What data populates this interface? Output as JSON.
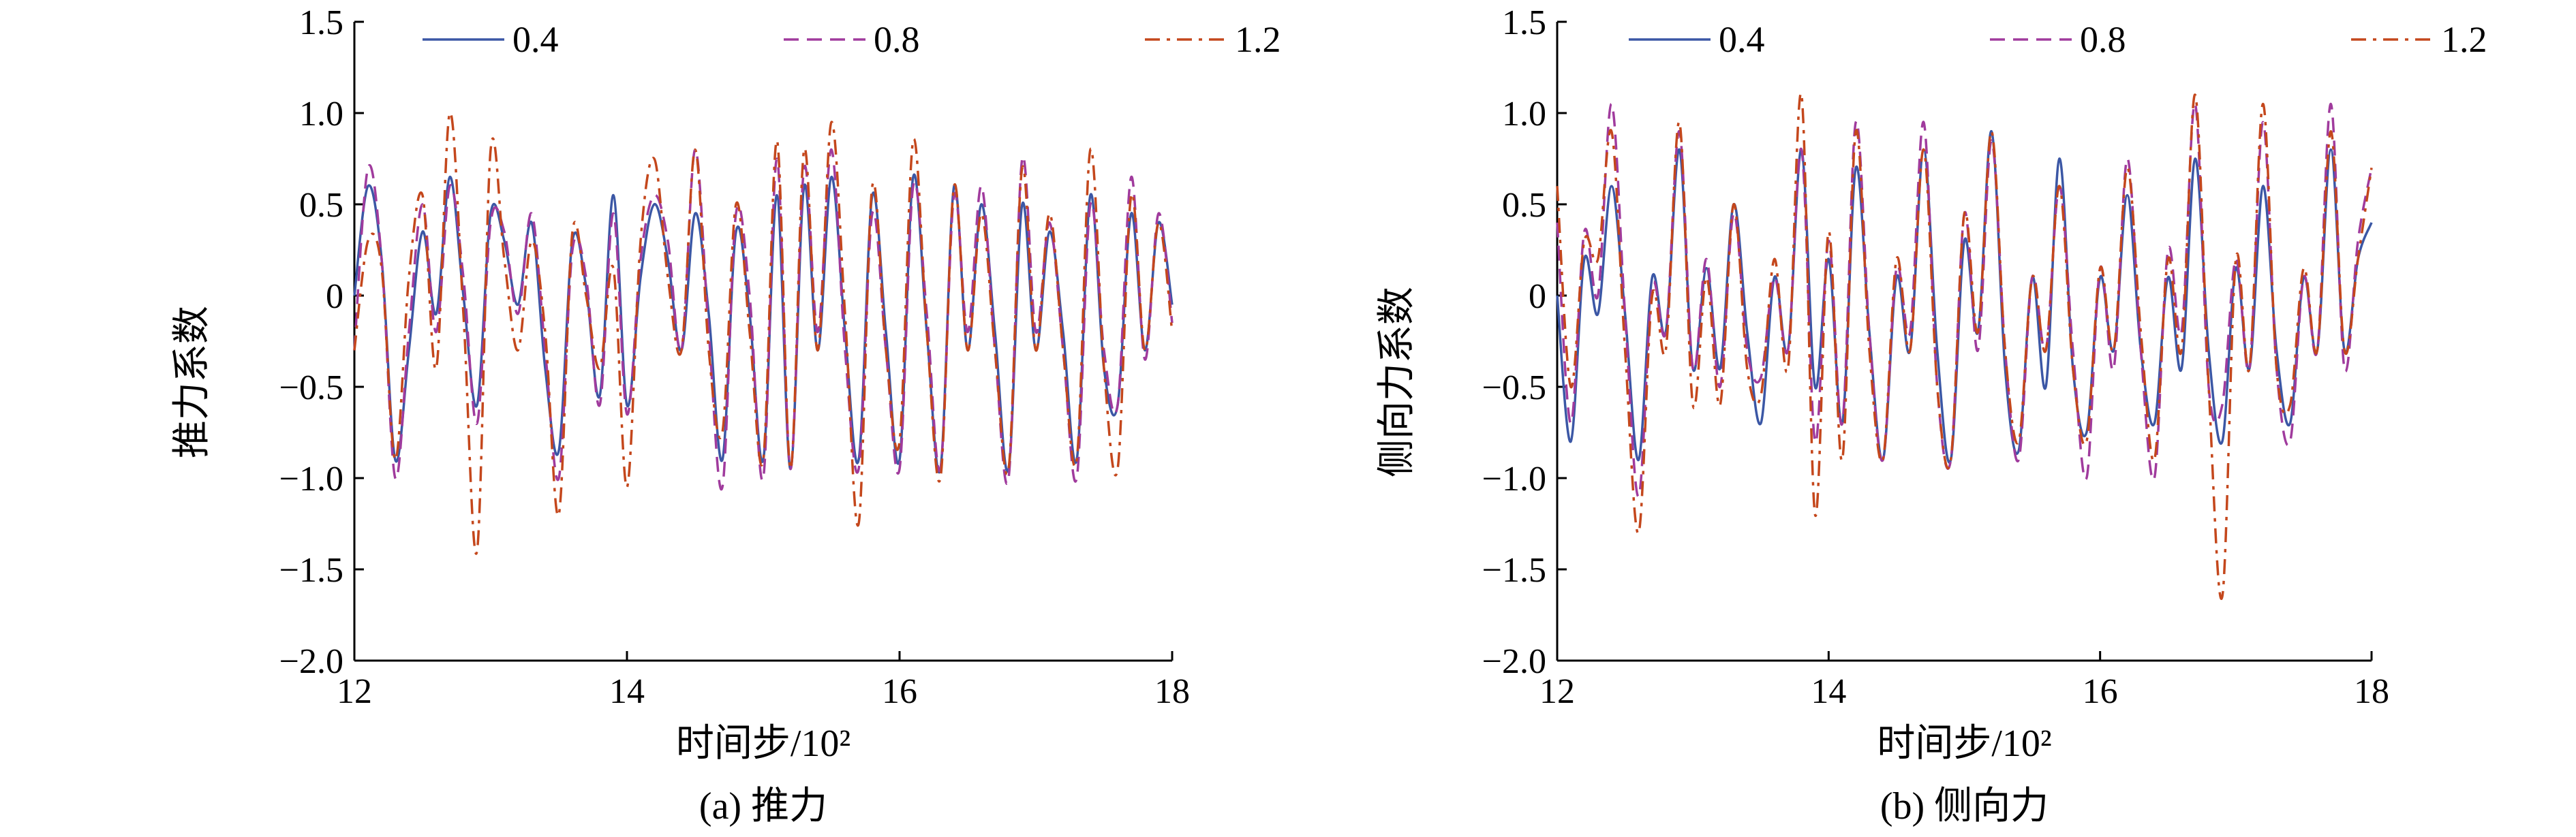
{
  "chart_data": [
    {
      "type": "line",
      "caption": "(a) 推力",
      "xlabel": "时间步/10²",
      "ylabel": "推力系数",
      "xlim": [
        12,
        18
      ],
      "ylim": [
        -2.0,
        1.5
      ],
      "xticks": [
        "12",
        "14",
        "16",
        "18"
      ],
      "yticks": [
        "1.5",
        "1.0",
        "0.5",
        "0",
        "−0.5",
        "−1.0",
        "−1.5",
        "−2.0"
      ],
      "grid": false,
      "legend_position": "top",
      "x": [
        12.0,
        12.1,
        12.2,
        12.3,
        12.4,
        12.5,
        12.6,
        12.7,
        12.8,
        12.9,
        13.0,
        13.1,
        13.2,
        13.3,
        13.4,
        13.5,
        13.6,
        13.7,
        13.8,
        13.9,
        14.0,
        14.1,
        14.2,
        14.3,
        14.4,
        14.5,
        14.6,
        14.7,
        14.8,
        14.9,
        15.0,
        15.1,
        15.2,
        15.3,
        15.4,
        15.5,
        15.6,
        15.7,
        15.8,
        15.9,
        16.0,
        16.1,
        16.2,
        16.3,
        16.4,
        16.5,
        16.6,
        16.7,
        16.8,
        16.9,
        17.0,
        17.1,
        17.2,
        17.3,
        17.4,
        17.5,
        17.6,
        17.7,
        17.8,
        17.9,
        18.0
      ],
      "series": [
        {
          "name": "0.4",
          "color": "#3b57a5",
          "dash": "solid",
          "values": [
            0.0,
            0.6,
            0.2,
            -0.9,
            -0.3,
            0.35,
            -0.1,
            0.65,
            0.0,
            -0.6,
            0.45,
            0.3,
            -0.05,
            0.4,
            -0.4,
            -0.85,
            0.3,
            0.05,
            -0.55,
            0.55,
            -0.6,
            0.1,
            0.5,
            0.2,
            -0.3,
            0.45,
            -0.1,
            -0.9,
            0.35,
            -0.1,
            -0.9,
            0.55,
            -0.95,
            0.6,
            -0.3,
            0.65,
            -0.2,
            -0.9,
            0.55,
            -0.2,
            -0.9,
            0.65,
            -0.2,
            -0.95,
            0.6,
            -0.3,
            0.5,
            -0.2,
            -0.95,
            0.5,
            -0.3,
            0.35,
            -0.2,
            -0.9,
            0.55,
            -0.4,
            -0.6,
            0.45,
            -0.3,
            0.4,
            -0.05
          ]
        },
        {
          "name": "0.8",
          "color": "#a03b9d",
          "dash": "dashed",
          "values": [
            -0.3,
            0.7,
            0.2,
            -1.0,
            -0.2,
            0.5,
            -0.2,
            0.6,
            0.1,
            -0.7,
            0.4,
            0.35,
            -0.1,
            0.45,
            -0.3,
            -1.0,
            0.25,
            0.1,
            -0.6,
            0.45,
            -0.65,
            0.2,
            0.55,
            0.3,
            -0.3,
            0.8,
            -0.2,
            -1.05,
            0.45,
            0.0,
            -1.0,
            0.75,
            -0.95,
            0.7,
            -0.2,
            0.8,
            -0.3,
            -0.95,
            0.45,
            -0.3,
            -0.95,
            0.6,
            -0.1,
            -0.95,
            0.55,
            -0.2,
            0.6,
            -0.3,
            -1.0,
            0.75,
            -0.2,
            0.4,
            -0.3,
            -1.0,
            0.5,
            -0.3,
            -0.6,
            0.65,
            -0.35,
            0.45,
            -0.15
          ]
        },
        {
          "name": "1.2",
          "color": "#c4471c",
          "dash": "dashdot",
          "values": [
            -0.3,
            0.3,
            0.15,
            -0.9,
            0.1,
            0.55,
            -0.4,
            1.0,
            -0.1,
            -1.4,
            0.8,
            0.2,
            -0.3,
            0.3,
            -0.2,
            -1.2,
            0.35,
            0.0,
            -0.4,
            0.15,
            -1.05,
            0.3,
            0.75,
            0.1,
            -0.3,
            0.8,
            -0.3,
            -0.75,
            0.5,
            -0.2,
            -0.9,
            0.85,
            -0.95,
            0.8,
            -0.3,
            0.95,
            -0.1,
            -1.25,
            0.6,
            -0.3,
            -0.8,
            0.85,
            -0.2,
            -1.0,
            0.6,
            -0.3,
            0.45,
            -0.3,
            -0.95,
            0.7,
            -0.3,
            0.45,
            -0.3,
            -0.9,
            0.8,
            -0.4,
            -0.95,
            0.55,
            -0.3,
            0.4,
            -0.2
          ]
        }
      ]
    },
    {
      "type": "line",
      "caption": "(b) 侧向力",
      "xlabel": "时间步/10²",
      "ylabel": "侧向力系数",
      "xlim": [
        12,
        18
      ],
      "ylim": [
        -2.0,
        1.5
      ],
      "xticks": [
        "12",
        "14",
        "16",
        "18"
      ],
      "yticks": [
        "1.5",
        "1.0",
        "0.5",
        "0",
        "−0.5",
        "−1.0",
        "−1.5",
        "−2.0"
      ],
      "grid": false,
      "legend_position": "top",
      "x": [
        12.0,
        12.1,
        12.2,
        12.3,
        12.4,
        12.5,
        12.6,
        12.7,
        12.8,
        12.9,
        13.0,
        13.1,
        13.2,
        13.3,
        13.4,
        13.5,
        13.6,
        13.7,
        13.8,
        13.9,
        14.0,
        14.1,
        14.2,
        14.3,
        14.4,
        14.5,
        14.6,
        14.7,
        14.8,
        14.9,
        15.0,
        15.1,
        15.2,
        15.3,
        15.4,
        15.5,
        15.6,
        15.7,
        15.8,
        15.9,
        16.0,
        16.1,
        16.2,
        16.3,
        16.4,
        16.5,
        16.6,
        16.7,
        16.8,
        16.9,
        17.0,
        17.1,
        17.2,
        17.3,
        17.4,
        17.5,
        17.6,
        17.7,
        17.8,
        17.9,
        18.0
      ],
      "series": [
        {
          "name": "0.4",
          "color": "#3b57a5",
          "dash": "solid",
          "values": [
            0.0,
            -0.8,
            0.2,
            -0.1,
            0.6,
            -0.1,
            -0.9,
            0.1,
            -0.2,
            0.8,
            -0.4,
            0.15,
            -0.4,
            0.5,
            -0.2,
            -0.7,
            0.1,
            -0.3,
            0.8,
            -0.5,
            0.2,
            -0.7,
            0.7,
            -0.2,
            -0.9,
            0.1,
            -0.3,
            0.8,
            -0.3,
            -0.9,
            0.3,
            -0.2,
            0.9,
            -0.4,
            -0.85,
            0.1,
            -0.5,
            0.75,
            -0.4,
            -0.75,
            0.1,
            -0.3,
            0.55,
            -0.3,
            -0.7,
            0.1,
            -0.4,
            0.75,
            -0.3,
            -0.8,
            0.15,
            -0.4,
            0.6,
            -0.3,
            -0.7,
            0.1,
            -0.3,
            0.8,
            -0.3,
            0.2,
            0.4
          ]
        },
        {
          "name": "0.8",
          "color": "#a03b9d",
          "dash": "dashed",
          "values": [
            0.4,
            -0.7,
            0.35,
            0.0,
            1.05,
            -0.1,
            -1.1,
            0.05,
            -0.2,
            0.9,
            -0.4,
            0.2,
            -0.5,
            0.45,
            -0.3,
            -0.45,
            0.1,
            -0.3,
            0.8,
            -0.8,
            0.3,
            -0.7,
            0.95,
            -0.2,
            -0.9,
            0.15,
            -0.2,
            0.95,
            -0.5,
            -0.9,
            0.45,
            -0.3,
            0.85,
            -0.3,
            -0.9,
            0.1,
            -0.3,
            0.6,
            -0.3,
            -1.0,
            0.15,
            -0.4,
            0.75,
            -0.3,
            -1.0,
            0.25,
            -0.2,
            1.05,
            -0.5,
            -0.6,
            0.2,
            -0.4,
            0.95,
            -0.4,
            -0.8,
            0.1,
            -0.3,
            1.05,
            -0.4,
            0.3,
            0.7
          ]
        },
        {
          "name": "1.2",
          "color": "#c4471c",
          "dash": "dashdot",
          "values": [
            0.6,
            -0.5,
            0.3,
            0.2,
            0.9,
            -0.3,
            -1.3,
            0.0,
            -0.3,
            0.95,
            -0.6,
            0.1,
            -0.6,
            0.5,
            -0.4,
            -0.55,
            0.2,
            -0.4,
            1.1,
            -1.2,
            0.35,
            -0.9,
            0.9,
            -0.3,
            -0.9,
            0.2,
            -0.3,
            0.8,
            -0.5,
            -0.9,
            0.45,
            -0.2,
            0.9,
            -0.3,
            -0.8,
            0.1,
            -0.3,
            0.6,
            -0.4,
            -0.8,
            0.15,
            -0.3,
            0.7,
            -0.2,
            -0.9,
            0.2,
            -0.3,
            1.1,
            -0.5,
            -1.65,
            0.2,
            -0.4,
            1.05,
            -0.4,
            -0.6,
            0.15,
            -0.3,
            0.9,
            -0.3,
            0.2,
            0.7
          ]
        }
      ]
    }
  ]
}
